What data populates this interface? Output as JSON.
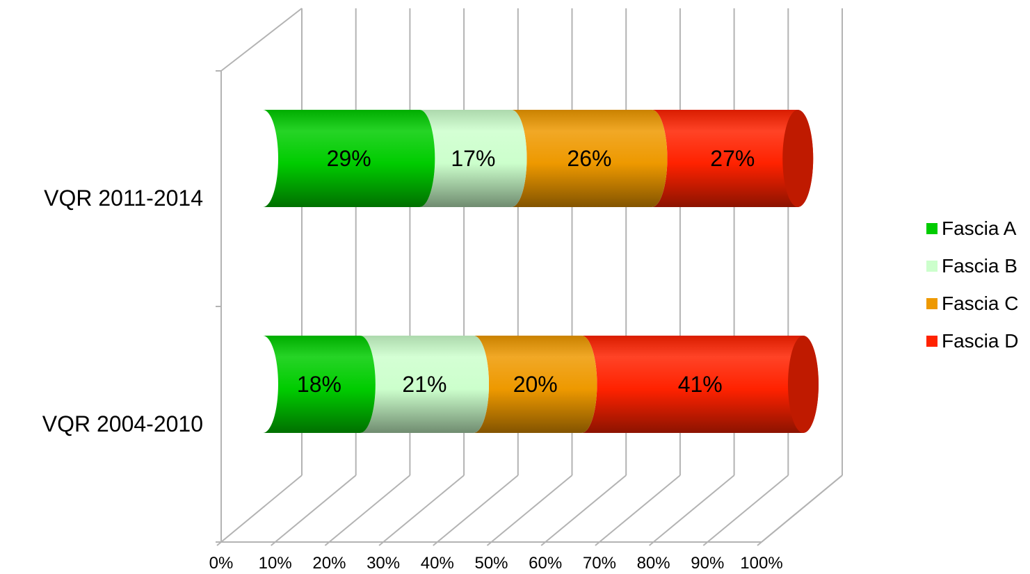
{
  "chart_data": {
    "type": "bar",
    "orientation": "horizontal",
    "stacked": true,
    "percent": true,
    "three_d": "cylinder",
    "categories": [
      "VQR 2004-2010",
      "VQR 2011-2014"
    ],
    "series": [
      {
        "name": "Fascia A",
        "color": "#00cc00",
        "values": [
          18,
          29
        ]
      },
      {
        "name": "Fascia B",
        "color": "#ccffcc",
        "values": [
          21,
          17
        ]
      },
      {
        "name": "Fascia C",
        "color": "#ee9900",
        "values": [
          20,
          26
        ]
      },
      {
        "name": "Fascia D",
        "color": "#ff2200",
        "values": [
          41,
          27
        ]
      }
    ],
    "xlim": [
      0,
      100
    ],
    "x_ticks": [
      "0%",
      "10%",
      "20%",
      "30%",
      "40%",
      "50%",
      "60%",
      "70%",
      "80%",
      "90%",
      "100%"
    ],
    "grid": true,
    "legend_position": "right",
    "title": "",
    "xlabel": "",
    "ylabel": ""
  }
}
